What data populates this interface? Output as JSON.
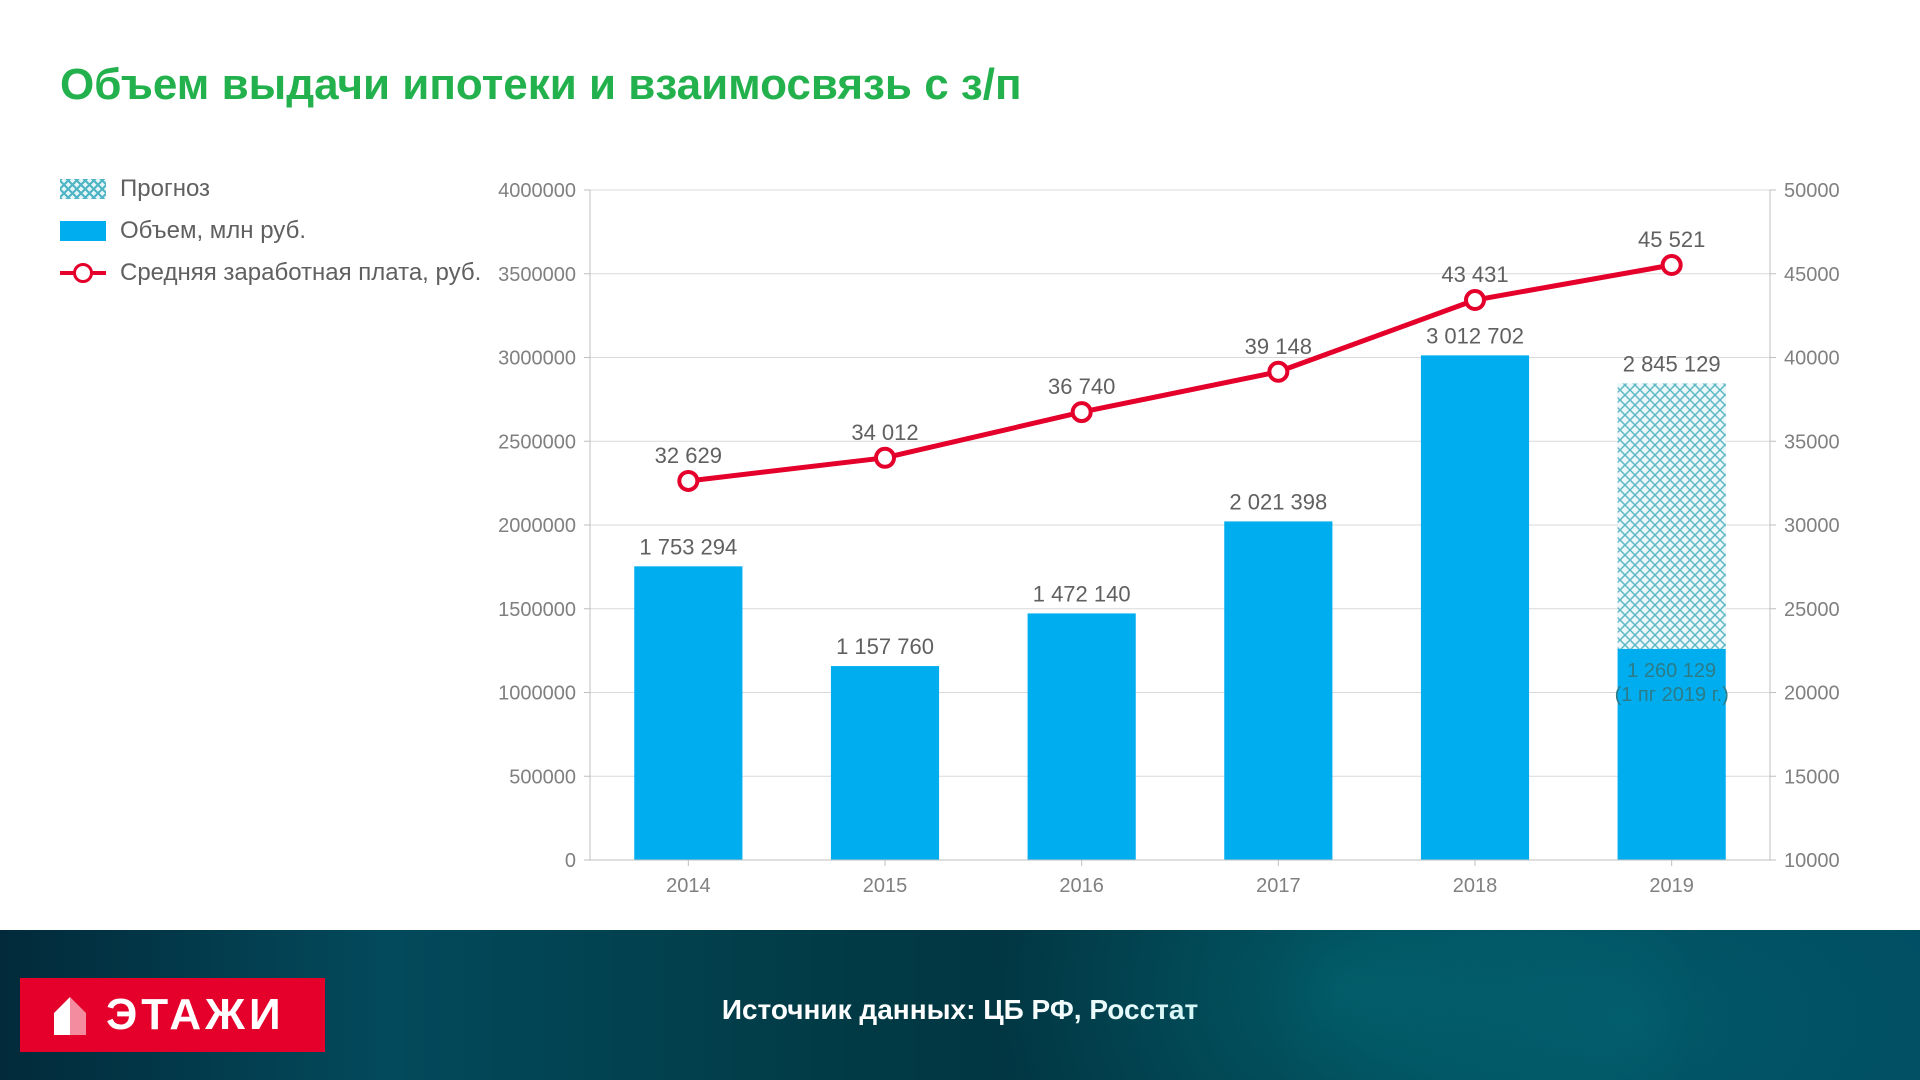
{
  "title": "Объем выдачи ипотеки и взаимосвязь с з/п",
  "legend": {
    "forecast": "Прогноз",
    "volume": "Объем, млн руб.",
    "salary": "Средняя заработная плата, руб."
  },
  "chart": {
    "type": "bar+line (dual axis)",
    "categories": [
      "2014",
      "2015",
      "2016",
      "2017",
      "2018",
      "2019"
    ],
    "bars": {
      "values": [
        1753294,
        1157760,
        1472140,
        2021398,
        3012702,
        2845129
      ],
      "value_labels": [
        "1 753 294",
        "1 157 760",
        "1 472 140",
        "2 021 398",
        "3 012 702",
        "2 845 129"
      ],
      "colors": [
        "#00aeef",
        "#00aeef",
        "#00aeef",
        "#00aeef",
        "#00aeef",
        "forecast"
      ],
      "forecast_bar": {
        "index": 5,
        "solid_value": 1260129,
        "solid_label": "1 260 129",
        "solid_sublabel": "(1 пг 2019 г.)",
        "total_value": 2845129
      },
      "forecast_solid_color": "#00aeef",
      "forecast_hatch_colors": {
        "fg": "#5fb8c6",
        "bg": "#ecf7f9"
      },
      "bar_width_ratio": 0.55
    },
    "line": {
      "values": [
        32629,
        34012,
        36740,
        39148,
        43431,
        45521
      ],
      "value_labels": [
        "32 629",
        "34 012",
        "36 740",
        "39 148",
        "43 431",
        "45 521"
      ],
      "color": "#e4002b",
      "line_width": 5,
      "marker": {
        "shape": "circle",
        "size": 9,
        "stroke_width": 4,
        "stroke": "#e4002b",
        "fill": "#ffffff"
      }
    },
    "y_left": {
      "min": 0,
      "max": 4000000,
      "step": 500000
    },
    "y_right": {
      "min": 10000,
      "max": 50000,
      "step": 5000
    },
    "grid_color": "#d9d9d9",
    "axis_tick_color": "#bfbfbf",
    "background_color": "#ffffff",
    "axis_font_size": 20,
    "label_font_size": 22,
    "label_color": "#606060"
  },
  "footer": {
    "source": "Источник данных: ЦБ РФ, Росстат",
    "logo_text": "ЭТАЖИ",
    "logo_bg": "#e4002b",
    "band_gradient": [
      "#022a3a",
      "#034a5c",
      "#013a44",
      "#022d3f",
      "#014b60"
    ]
  },
  "colors": {
    "title": "#22b14c",
    "text": "#606060",
    "bar": "#00aeef",
    "line": "#e4002b",
    "grid": "#d9d9d9"
  }
}
